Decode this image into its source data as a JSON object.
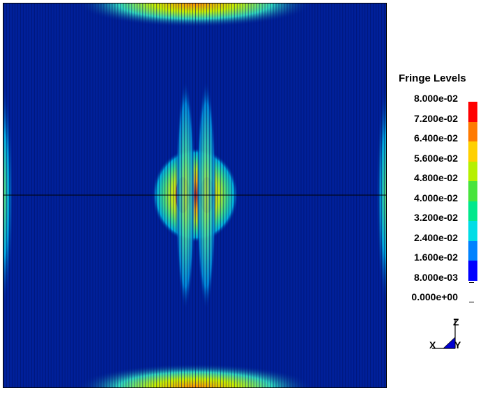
{
  "legend": {
    "title": "Fringe Levels",
    "levels": [
      "8.000e-02",
      "7.200e-02",
      "6.400e-02",
      "5.600e-02",
      "4.800e-02",
      "4.000e-02",
      "3.200e-02",
      "2.400e-02",
      "1.600e-02",
      "8.000e-03",
      "0.000e+00"
    ],
    "colors": [
      "#ff0000",
      "#ff7a00",
      "#ffd000",
      "#b6f000",
      "#48e43c",
      "#00e88c",
      "#00dde6",
      "#0082ff",
      "#0000ff"
    ]
  },
  "triad": {
    "z_label": "Z",
    "x_label": "X",
    "y_label": "Y"
  },
  "plot": {
    "background": "#00209a",
    "stripe_color": "#001a78",
    "axis_line_color": "#000000"
  }
}
